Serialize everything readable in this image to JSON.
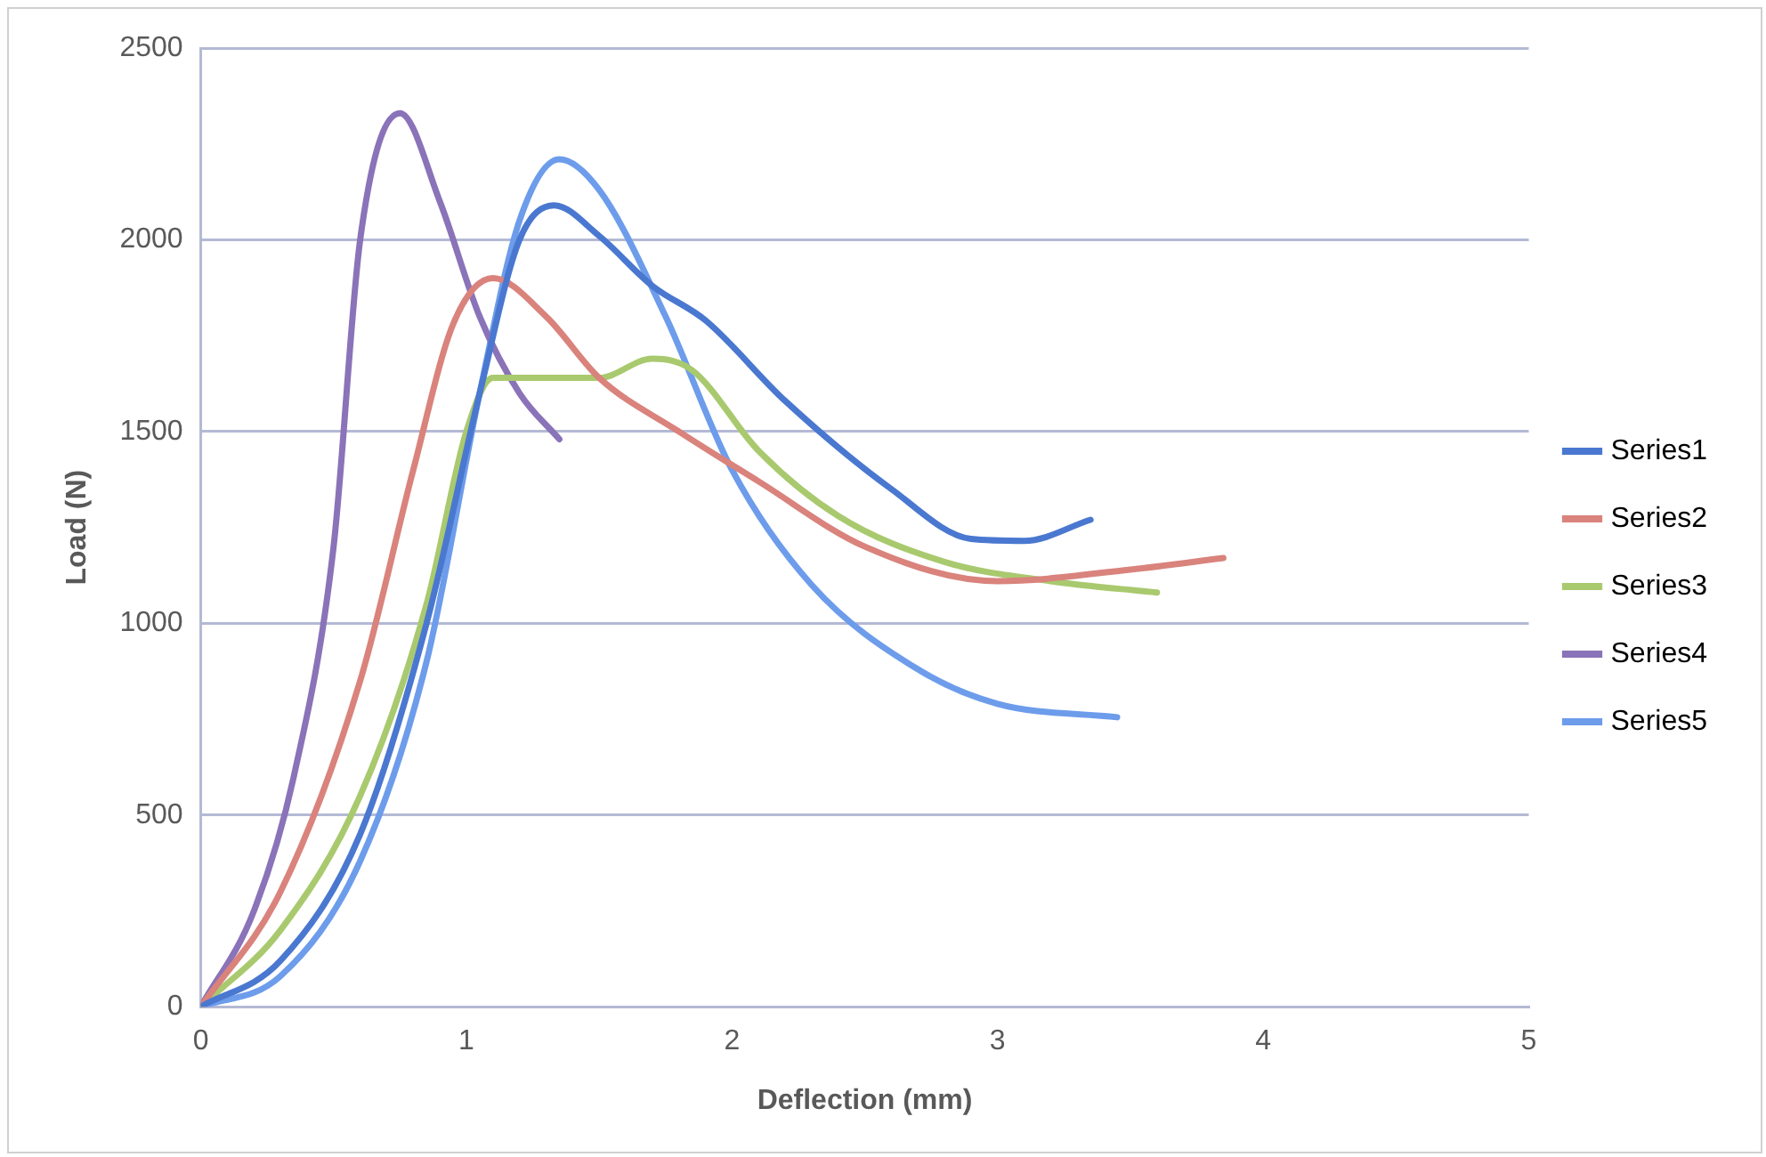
{
  "chart_data": {
    "type": "line",
    "xlabel": "Deflection (mm)",
    "ylabel": "Load (N)",
    "xlim": [
      0,
      5
    ],
    "xticks": [
      0,
      1,
      2,
      3,
      4,
      5
    ],
    "ylim": [
      0,
      2500
    ],
    "yticks": [
      0,
      500,
      1000,
      1500,
      2000,
      2500
    ],
    "grid": "y",
    "legend": "right",
    "marker": "none",
    "line_style": "solid",
    "series": [
      {
        "name": "Series1",
        "color": "#4a78d0",
        "x": [
          0,
          0.3,
          0.6,
          0.85,
          1.05,
          1.2,
          1.33,
          1.5,
          1.7,
          1.9,
          2.2,
          2.6,
          2.9,
          3.1,
          3.35
        ],
        "values": [
          0,
          120,
          450,
          1000,
          1600,
          2000,
          2090,
          2010,
          1880,
          1790,
          1580,
          1350,
          1220,
          1215,
          1270
        ]
      },
      {
        "name": "Series2",
        "color": "#d9837c",
        "x": [
          0,
          0.3,
          0.6,
          0.8,
          0.95,
          1.1,
          1.3,
          1.5,
          1.8,
          2.1,
          2.5,
          3.0,
          3.5,
          3.85
        ],
        "values": [
          0,
          300,
          850,
          1400,
          1780,
          1900,
          1800,
          1640,
          1500,
          1370,
          1200,
          1110,
          1140,
          1170
        ]
      },
      {
        "name": "Series3",
        "color": "#a9c96e",
        "x": [
          0,
          0.3,
          0.6,
          0.85,
          1.0,
          1.1,
          1.3,
          1.5,
          1.7,
          1.85,
          2.1,
          2.4,
          2.8,
          3.2,
          3.6
        ],
        "values": [
          0,
          200,
          550,
          1050,
          1500,
          1640,
          1640,
          1640,
          1690,
          1660,
          1450,
          1280,
          1160,
          1110,
          1080
        ]
      },
      {
        "name": "Series4",
        "color": "#8a73b8",
        "x": [
          0,
          0.2,
          0.35,
          0.5,
          0.6,
          0.75,
          0.9,
          1.05,
          1.2,
          1.35
        ],
        "values": [
          0,
          250,
          600,
          1200,
          2000,
          2330,
          2100,
          1800,
          1600,
          1480
        ]
      },
      {
        "name": "Series5",
        "color": "#6d9ceb",
        "x": [
          0,
          0.3,
          0.6,
          0.85,
          1.05,
          1.2,
          1.35,
          1.5,
          1.75,
          2.0,
          2.3,
          2.7,
          3.0,
          3.45
        ],
        "values": [
          0,
          80,
          380,
          900,
          1600,
          2050,
          2210,
          2130,
          1800,
          1400,
          1100,
          880,
          790,
          755
        ]
      }
    ]
  }
}
